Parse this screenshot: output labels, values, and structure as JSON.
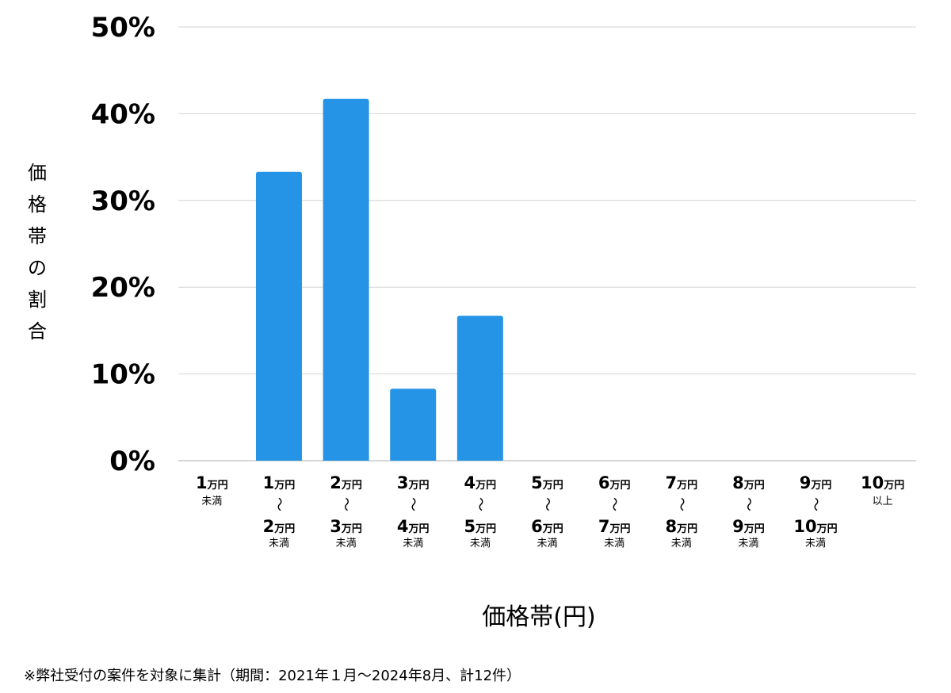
{
  "chart_data": {
    "type": "bar",
    "title": "",
    "xlabel": "価格帯(円)",
    "ylabel": "価格帯の割合",
    "ylim": [
      0,
      50
    ],
    "yticks": [
      "0%",
      "10%",
      "20%",
      "30%",
      "40%",
      "50%"
    ],
    "ytick_values": [
      0,
      10,
      20,
      30,
      40,
      50
    ],
    "grid": true,
    "bar_color": "#2594e6",
    "categories": [
      {
        "from": "1",
        "from_unit": "万円",
        "to": "",
        "to_unit": "",
        "tilde": "",
        "suffix": "未満"
      },
      {
        "from": "1",
        "from_unit": "万円",
        "to": "2",
        "to_unit": "万円",
        "tilde": "〜",
        "suffix": "未満"
      },
      {
        "from": "2",
        "from_unit": "万円",
        "to": "3",
        "to_unit": "万円",
        "tilde": "〜",
        "suffix": "未満"
      },
      {
        "from": "3",
        "from_unit": "万円",
        "to": "4",
        "to_unit": "万円",
        "tilde": "〜",
        "suffix": "未満"
      },
      {
        "from": "4",
        "from_unit": "万円",
        "to": "5",
        "to_unit": "万円",
        "tilde": "〜",
        "suffix": "未満"
      },
      {
        "from": "5",
        "from_unit": "万円",
        "to": "6",
        "to_unit": "万円",
        "tilde": "〜",
        "suffix": "未満"
      },
      {
        "from": "6",
        "from_unit": "万円",
        "to": "7",
        "to_unit": "万円",
        "tilde": "〜",
        "suffix": "未満"
      },
      {
        "from": "7",
        "from_unit": "万円",
        "to": "8",
        "to_unit": "万円",
        "tilde": "〜",
        "suffix": "未満"
      },
      {
        "from": "8",
        "from_unit": "万円",
        "to": "9",
        "to_unit": "万円",
        "tilde": "〜",
        "suffix": "未満"
      },
      {
        "from": "9",
        "from_unit": "万円",
        "to": "10",
        "to_unit": "万円",
        "tilde": "〜",
        "suffix": "未満"
      },
      {
        "from": "10",
        "from_unit": "万円",
        "to": "",
        "to_unit": "",
        "tilde": "",
        "suffix": "以上"
      }
    ],
    "values": [
      0,
      33.3,
      41.7,
      8.3,
      16.7,
      0,
      0,
      0,
      0,
      0,
      0
    ]
  },
  "footnote": "※弊社受付の案件を対象に集計（期間：2021年１月〜2024年8月、計12件）"
}
